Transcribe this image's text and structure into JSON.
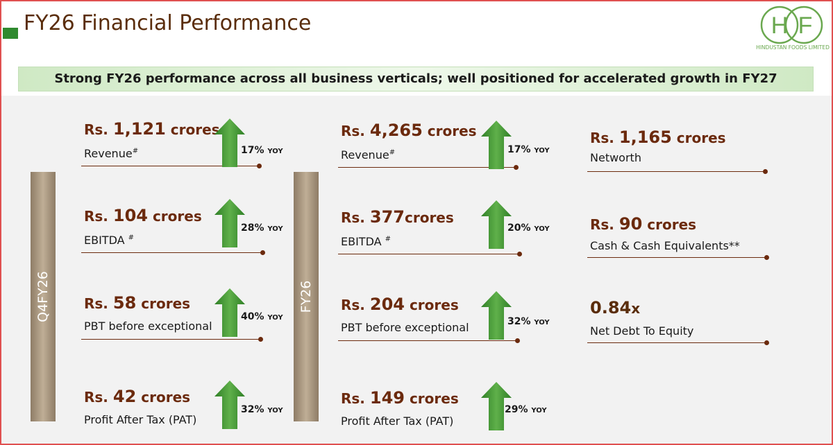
{
  "title": "FY26 Financial Performance",
  "logo": {
    "letter_left": "H",
    "letter_right": "F",
    "name": "HINDUSTAN FOODS LIMITED"
  },
  "banner": "Strong FY26 performance across all business verticals; well positioned for accelerated growth in FY27",
  "colors": {
    "accent_green": "#2f8a2f",
    "brown": "#6b2a0d",
    "banner_green": "#cfe9c4"
  },
  "period_labels": {
    "q4": "Q4FY26",
    "fy": "FY26"
  },
  "q4fy26": [
    {
      "prefix": "Rs. ",
      "value": "1,121",
      "unit": " crores",
      "label": "Revenue",
      "note": "#",
      "growth": "17%",
      "growth_tag": "YOY"
    },
    {
      "prefix": "Rs. ",
      "value": "104",
      "unit": " crores",
      "label": "EBITDA ",
      "note": "#",
      "growth": "28%",
      "growth_tag": "YOY"
    },
    {
      "prefix": "Rs. ",
      "value": "58",
      "unit": " crores",
      "label": "PBT before exceptional",
      "note": "",
      "growth": "40%",
      "growth_tag": "YOY"
    },
    {
      "prefix": "Rs. ",
      "value": "42",
      "unit": " crores",
      "label": "Profit After Tax (PAT)",
      "note": "",
      "growth": "32%",
      "growth_tag": "YOY"
    }
  ],
  "fy26": [
    {
      "prefix": "Rs. ",
      "value": "4,265",
      "unit": " crores",
      "label": "Revenue",
      "note": "#",
      "growth": "17%",
      "growth_tag": "YOY"
    },
    {
      "prefix": "Rs. ",
      "value": "377",
      "unit": "crores",
      "label": "EBITDA ",
      "note": "#",
      "growth": "20%",
      "growth_tag": "YOY"
    },
    {
      "prefix": "Rs. ",
      "value": "204",
      "unit": " crores",
      "label": "PBT before exceptional",
      "note": "",
      "growth": "32%",
      "growth_tag": "YOY"
    },
    {
      "prefix": "Rs. ",
      "value": "149",
      "unit": " crores",
      "label": "Profit After Tax (PAT)",
      "note": "",
      "growth": "29%",
      "growth_tag": "YOY"
    }
  ],
  "balance_sheet": [
    {
      "prefix": "Rs. ",
      "value": "1,165",
      "unit": " crores",
      "label": "Networth"
    },
    {
      "prefix": "Rs. ",
      "value": "90",
      "unit": " crores",
      "label": "Cash & Cash Equivalents**"
    },
    {
      "prefix": "",
      "value": "0.84",
      "unit": "x",
      "label": "Net Debt To Equity"
    }
  ]
}
